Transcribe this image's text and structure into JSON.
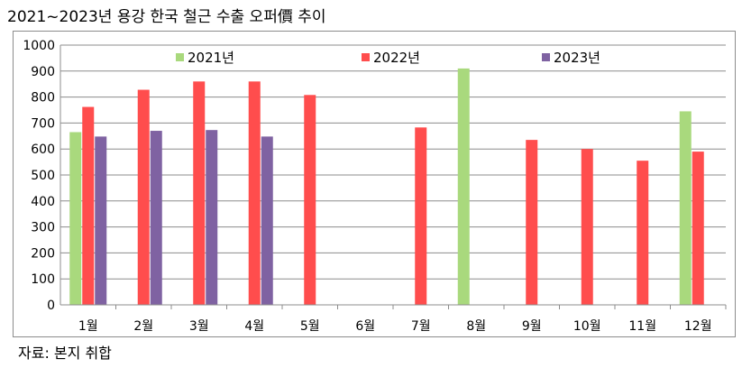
{
  "title": "2021~2023년 용강 한국 철근 수출 오퍼價 추이",
  "source": "자료: 본지 취합",
  "chart_data": {
    "type": "bar",
    "title": "",
    "xlabel": "",
    "ylabel": "",
    "ylim": [
      0,
      1000
    ],
    "yticks": [
      0,
      100,
      200,
      300,
      400,
      500,
      600,
      700,
      800,
      900,
      1000
    ],
    "grid": true,
    "legend_position": "top",
    "categories": [
      "1월",
      "2월",
      "3월",
      "4월",
      "5월",
      "6월",
      "7월",
      "8월",
      "9월",
      "10월",
      "11월",
      "12월"
    ],
    "series": [
      {
        "name": "2021년",
        "color": "#a9d97d",
        "values": [
          665,
          null,
          null,
          null,
          null,
          null,
          null,
          910,
          null,
          null,
          null,
          745
        ]
      },
      {
        "name": "2022년",
        "color": "#ff4d4d",
        "values": [
          762,
          828,
          860,
          860,
          808,
          null,
          683,
          null,
          635,
          600,
          555,
          590
        ]
      },
      {
        "name": "2023년",
        "color": "#7f62a2",
        "values": [
          648,
          670,
          673,
          648,
          null,
          null,
          null,
          null,
          null,
          null,
          null,
          null
        ]
      }
    ]
  }
}
